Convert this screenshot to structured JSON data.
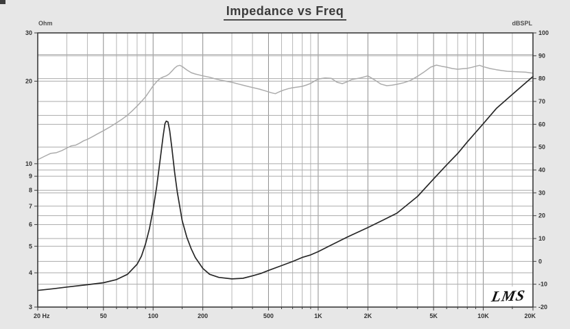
{
  "title": "Impedance vs Freq",
  "branding": {
    "logo": "LMS"
  },
  "theme": {
    "page_bg": "#e7e7e7",
    "plot_bg": "#ffffff",
    "frame_color": "#3a3a3a",
    "grid_major_color": "#8c8c8c",
    "grid_minor_color": "#b6b6b6",
    "grid_horizontal_color": "#aaaaaa",
    "tick_label_color": "#333333",
    "title_color": "#3b3b3b"
  },
  "chart_data": {
    "type": "line",
    "title": "Impedance vs Freq",
    "grid": "on",
    "x_axis": {
      "scale": "log",
      "min": 20,
      "max": 20000,
      "tick_values": [
        20,
        50,
        100,
        200,
        500,
        1000,
        2000,
        5000,
        10000,
        20000
      ],
      "tick_labels": [
        "20 Hz",
        "50",
        "100",
        "200",
        "500",
        "1K",
        "2K",
        "5K",
        "10K",
        "20K"
      ],
      "minor_grid_values": [
        30,
        40,
        60,
        70,
        80,
        90,
        150,
        300,
        400,
        600,
        700,
        800,
        900,
        1500,
        3000,
        4000,
        6000,
        7000,
        8000,
        9000,
        15000
      ]
    },
    "y_left_axis": {
      "label": "Ohm",
      "scale": "log",
      "min": 3,
      "max": 30,
      "tick_values": [
        30,
        20,
        10,
        9,
        8,
        7,
        6,
        5,
        4,
        3
      ],
      "grid_values": [
        25,
        20,
        15,
        10,
        9,
        8,
        7,
        6,
        5,
        4
      ]
    },
    "y_right_axis": {
      "label": "dBSPL",
      "scale": "linear",
      "min": -20,
      "max": 100,
      "tick_values": [
        100,
        90,
        80,
        70,
        60,
        50,
        40,
        30,
        20,
        10,
        0,
        -10,
        -20
      ],
      "grid_values": [
        90,
        80,
        70,
        60,
        50,
        40,
        30,
        20,
        10,
        0,
        -10
      ]
    },
    "series": [
      {
        "name": "Impedance",
        "axis": "left",
        "unit": "Ohm",
        "color": "#262626",
        "width": 1.7,
        "points": [
          [
            20,
            3.45
          ],
          [
            25,
            3.5
          ],
          [
            30,
            3.55
          ],
          [
            40,
            3.62
          ],
          [
            50,
            3.68
          ],
          [
            60,
            3.78
          ],
          [
            70,
            3.95
          ],
          [
            80,
            4.3
          ],
          [
            85,
            4.6
          ],
          [
            90,
            5.1
          ],
          [
            95,
            5.8
          ],
          [
            100,
            6.8
          ],
          [
            105,
            8.2
          ],
          [
            110,
            10.2
          ],
          [
            115,
            12.6
          ],
          [
            118,
            14.0
          ],
          [
            120,
            14.3
          ],
          [
            123,
            14.2
          ],
          [
            126,
            13.2
          ],
          [
            130,
            11.4
          ],
          [
            135,
            9.3
          ],
          [
            140,
            7.9
          ],
          [
            150,
            6.2
          ],
          [
            160,
            5.4
          ],
          [
            170,
            4.9
          ],
          [
            180,
            4.55
          ],
          [
            200,
            4.15
          ],
          [
            220,
            3.95
          ],
          [
            250,
            3.85
          ],
          [
            300,
            3.8
          ],
          [
            350,
            3.82
          ],
          [
            400,
            3.9
          ],
          [
            450,
            3.98
          ],
          [
            500,
            4.08
          ],
          [
            600,
            4.25
          ],
          [
            700,
            4.4
          ],
          [
            800,
            4.55
          ],
          [
            900,
            4.65
          ],
          [
            1000,
            4.78
          ],
          [
            1200,
            5.05
          ],
          [
            1500,
            5.4
          ],
          [
            2000,
            5.85
          ],
          [
            2500,
            6.25
          ],
          [
            3000,
            6.6
          ],
          [
            4000,
            7.6
          ],
          [
            5000,
            8.8
          ],
          [
            6000,
            9.9
          ],
          [
            7000,
            10.9
          ],
          [
            8000,
            12.0
          ],
          [
            10000,
            14.0
          ],
          [
            12000,
            15.9
          ],
          [
            15000,
            17.9
          ],
          [
            20000,
            20.8
          ]
        ]
      },
      {
        "name": "SPL",
        "axis": "right",
        "unit": "dBSPL",
        "color": "#ababab",
        "width": 1.5,
        "points": [
          [
            20,
            44.5
          ],
          [
            22,
            46.0
          ],
          [
            24,
            47.3
          ],
          [
            26,
            47.6
          ],
          [
            28,
            48.5
          ],
          [
            30,
            49.6
          ],
          [
            32,
            50.6
          ],
          [
            34,
            50.9
          ],
          [
            36,
            51.8
          ],
          [
            38,
            52.8
          ],
          [
            40,
            53.4
          ],
          [
            43,
            54.6
          ],
          [
            46,
            55.8
          ],
          [
            50,
            57.2
          ],
          [
            55,
            58.9
          ],
          [
            60,
            60.6
          ],
          [
            65,
            62.3
          ],
          [
            70,
            64.0
          ],
          [
            75,
            66.0
          ],
          [
            80,
            68.0
          ],
          [
            85,
            70.0
          ],
          [
            90,
            72.0
          ],
          [
            95,
            74.5
          ],
          [
            100,
            76.8
          ],
          [
            105,
            78.6
          ],
          [
            110,
            80.0
          ],
          [
            115,
            80.7
          ],
          [
            120,
            81.2
          ],
          [
            125,
            82.0
          ],
          [
            130,
            83.3
          ],
          [
            135,
            84.6
          ],
          [
            140,
            85.5
          ],
          [
            145,
            85.8
          ],
          [
            150,
            85.3
          ],
          [
            160,
            83.8
          ],
          [
            170,
            82.6
          ],
          [
            180,
            82.0
          ],
          [
            190,
            81.6
          ],
          [
            200,
            81.2
          ],
          [
            220,
            80.6
          ],
          [
            240,
            79.8
          ],
          [
            260,
            79.2
          ],
          [
            280,
            78.8
          ],
          [
            300,
            78.4
          ],
          [
            330,
            77.6
          ],
          [
            360,
            76.9
          ],
          [
            400,
            76.1
          ],
          [
            440,
            75.4
          ],
          [
            480,
            74.6
          ],
          [
            520,
            73.8
          ],
          [
            550,
            73.4
          ],
          [
            580,
            74.2
          ],
          [
            620,
            75.0
          ],
          [
            660,
            75.6
          ],
          [
            700,
            76.0
          ],
          [
            750,
            76.3
          ],
          [
            800,
            76.6
          ],
          [
            850,
            77.2
          ],
          [
            900,
            77.9
          ],
          [
            950,
            78.9
          ],
          [
            1000,
            79.8
          ],
          [
            1100,
            80.3
          ],
          [
            1200,
            80.1
          ],
          [
            1300,
            78.4
          ],
          [
            1400,
            77.8
          ],
          [
            1500,
            78.6
          ],
          [
            1600,
            79.6
          ],
          [
            1800,
            80.3
          ],
          [
            2000,
            81.2
          ],
          [
            2200,
            79.4
          ],
          [
            2400,
            77.6
          ],
          [
            2600,
            76.9
          ],
          [
            2800,
            77.1
          ],
          [
            3000,
            77.5
          ],
          [
            3300,
            78.2
          ],
          [
            3600,
            79.1
          ],
          [
            4000,
            81.0
          ],
          [
            4400,
            83.0
          ],
          [
            4800,
            85.0
          ],
          [
            5200,
            85.9
          ],
          [
            5600,
            85.4
          ],
          [
            6000,
            85.0
          ],
          [
            6500,
            84.4
          ],
          [
            7000,
            84.1
          ],
          [
            7500,
            84.3
          ],
          [
            8000,
            84.5
          ],
          [
            8500,
            84.9
          ],
          [
            9000,
            85.4
          ],
          [
            9500,
            85.8
          ],
          [
            10000,
            85.2
          ],
          [
            11000,
            84.4
          ],
          [
            12000,
            83.9
          ],
          [
            13000,
            83.5
          ],
          [
            14000,
            83.2
          ],
          [
            16000,
            83.0
          ],
          [
            18000,
            82.8
          ],
          [
            20000,
            82.4
          ]
        ]
      }
    ]
  }
}
